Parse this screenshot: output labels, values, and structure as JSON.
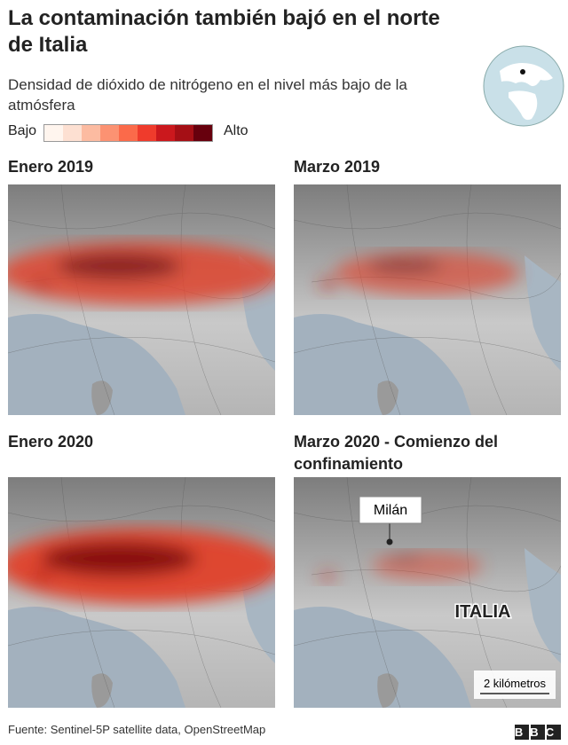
{
  "header": {
    "title": "La contaminación también bajó en el norte de Italia",
    "subtitle": "Densidad de dióxido de nitrógeno en el nivel más bajo de la atmósfera"
  },
  "legend": {
    "low": "Bajo",
    "high": "Alto",
    "colors": [
      "#fff5ee",
      "#fde0d2",
      "#fcbba1",
      "#fc9272",
      "#fb6a4a",
      "#ef3b2c",
      "#cb181d",
      "#a50f15",
      "#67000d"
    ]
  },
  "panels": [
    {
      "title": "Enero 2019"
    },
    {
      "title": "Marzo 2019"
    },
    {
      "title": "Enero 2020"
    },
    {
      "title": "Marzo 2020 - Comienzo del confinamiento",
      "city": "Milán",
      "country": "ITALIA",
      "scale": "2 kilómetros"
    }
  ],
  "footer": {
    "source": "Fuente: Sentinel-5P satellite data, OpenStreetMap",
    "logo": "BBC"
  }
}
